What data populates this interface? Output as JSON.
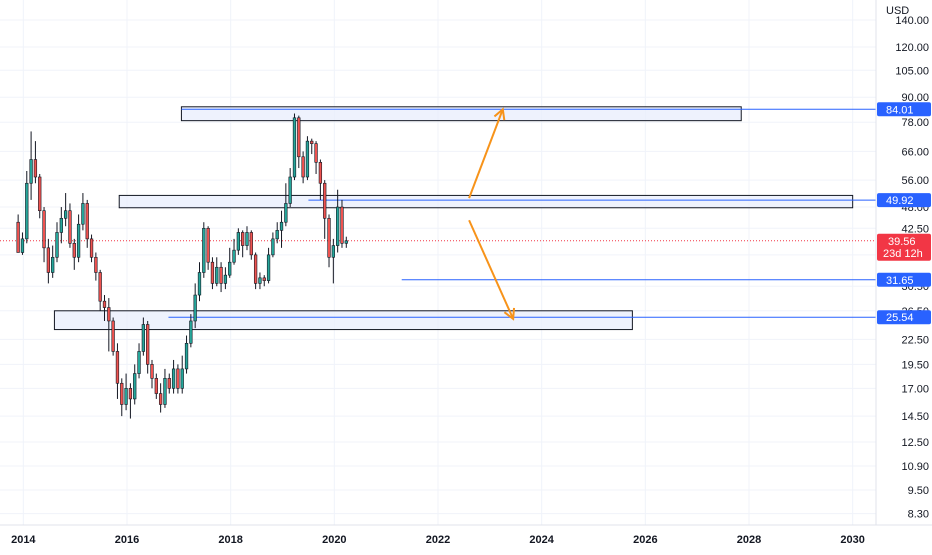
{
  "chart_data": {
    "type": "candlestick",
    "currency": "USD",
    "y_scale": "log",
    "ylim": [
      8.0,
      150.0
    ],
    "xlim": [
      2013.55,
      2030.45
    ],
    "price_ticks": [
      "140.00",
      "120.00",
      "105.00",
      "90.00",
      "78.00",
      "66.00",
      "56.00",
      "48.00",
      "42.50",
      "36.50",
      "30.50",
      "26.50",
      "22.50",
      "19.50",
      "17.00",
      "14.50",
      "12.50",
      "10.90",
      "9.50",
      "8.30"
    ],
    "year_ticks": [
      "2014",
      "2016",
      "2018",
      "2020",
      "2022",
      "2024",
      "2026",
      "2028",
      "2030"
    ],
    "candle_start": 2013.9,
    "candle_step": 0.0833,
    "candles": [
      [
        44.0,
        37.0,
        46.0,
        37.0
      ],
      [
        37.0,
        40.0,
        41.5,
        36.5
      ],
      [
        40.0,
        55.0,
        59.0,
        39.0
      ],
      [
        55.0,
        63.0,
        74.0,
        50.0
      ],
      [
        63.0,
        57.0,
        70.0,
        55.0
      ],
      [
        57.0,
        47.0,
        58.0,
        45.0
      ],
      [
        47.0,
        38.0,
        48.0,
        35.0
      ],
      [
        38.0,
        33.0,
        40.0,
        31.0
      ],
      [
        33.0,
        36.0,
        38.5,
        32.0
      ],
      [
        36.0,
        41.5,
        44.0,
        35.0
      ],
      [
        41.5,
        45.0,
        48.0,
        39.0
      ],
      [
        45.0,
        47.0,
        52.0,
        43.0
      ],
      [
        47.0,
        39.0,
        49.0,
        38.0
      ],
      [
        39.0,
        36.0,
        40.0,
        33.5
      ],
      [
        36.0,
        43.5,
        46.0,
        35.0
      ],
      [
        43.5,
        49.0,
        52.0,
        42.0
      ],
      [
        49.0,
        40.0,
        50.0,
        38.0
      ],
      [
        40.0,
        36.0,
        41.0,
        35.0
      ],
      [
        36.0,
        33.0,
        37.0,
        31.5
      ],
      [
        33.0,
        28.0,
        33.5,
        26.5
      ],
      [
        28.0,
        27.0,
        29.0,
        25.0
      ],
      [
        27.0,
        25.0,
        28.5,
        21.0
      ],
      [
        25.0,
        21.0,
        25.5,
        20.5
      ],
      [
        21.0,
        17.5,
        22.0,
        16.0
      ],
      [
        17.5,
        15.5,
        18.0,
        14.5
      ],
      [
        15.5,
        17.0,
        18.5,
        15.0
      ],
      [
        17.0,
        16.0,
        17.5,
        14.3
      ],
      [
        16.0,
        18.5,
        19.5,
        15.5
      ],
      [
        18.5,
        21.0,
        22.0,
        18.0
      ],
      [
        21.0,
        24.5,
        25.5,
        20.5
      ],
      [
        24.5,
        19.5,
        25.0,
        18.5
      ],
      [
        19.5,
        18.0,
        20.0,
        17.0
      ],
      [
        18.0,
        16.5,
        18.5,
        16.0
      ],
      [
        16.5,
        15.5,
        17.5,
        14.8
      ],
      [
        15.5,
        18.0,
        19.0,
        15.2
      ],
      [
        18.0,
        17.0,
        18.5,
        16.5
      ],
      [
        17.0,
        19.0,
        20.0,
        16.5
      ],
      [
        19.0,
        17.0,
        19.5,
        16.5
      ],
      [
        17.0,
        19.0,
        20.5,
        16.5
      ],
      [
        19.0,
        22.0,
        23.0,
        18.5
      ],
      [
        22.0,
        25.0,
        26.0,
        21.5
      ],
      [
        25.0,
        29.0,
        31.0,
        24.0
      ],
      [
        29.0,
        33.0,
        35.0,
        28.0
      ],
      [
        33.0,
        42.5,
        44.0,
        32.0
      ],
      [
        42.5,
        35.0,
        43.0,
        33.5
      ],
      [
        35.0,
        31.0,
        36.0,
        30.0
      ],
      [
        31.0,
        34.0,
        36.0,
        30.5
      ],
      [
        34.0,
        31.0,
        35.0,
        29.5
      ],
      [
        31.0,
        32.5,
        34.0,
        30.0
      ],
      [
        32.5,
        35.0,
        38.0,
        32.0
      ],
      [
        35.0,
        37.5,
        40.0,
        34.5
      ],
      [
        37.5,
        41.5,
        42.5,
        36.5
      ],
      [
        41.5,
        38.5,
        42.0,
        36.0
      ],
      [
        38.5,
        41.5,
        43.0,
        37.5
      ],
      [
        41.5,
        36.5,
        42.0,
        35.5
      ],
      [
        36.5,
        31.0,
        37.0,
        30.0
      ],
      [
        31.0,
        32.0,
        33.0,
        30.0
      ],
      [
        32.0,
        31.5,
        32.5,
        30.5
      ],
      [
        31.5,
        36.5,
        38.0,
        31.0
      ],
      [
        36.5,
        40.0,
        41.5,
        36.0
      ],
      [
        40.0,
        42.0,
        44.0,
        39.0
      ],
      [
        42.0,
        44.0,
        47.0,
        38.0
      ],
      [
        44.0,
        49.0,
        55.0,
        43.0
      ],
      [
        49.0,
        57.0,
        60.0,
        48.0
      ],
      [
        57.0,
        80.0,
        82.0,
        56.0
      ],
      [
        80.0,
        64.0,
        81.0,
        60.0
      ],
      [
        64.0,
        57.0,
        66.0,
        55.0
      ],
      [
        57.0,
        70.0,
        72.0,
        56.0
      ],
      [
        70.0,
        69.0,
        71.0,
        65.0
      ],
      [
        69.0,
        62.0,
        70.0,
        58.0
      ],
      [
        62.0,
        55.0,
        63.0,
        50.0
      ],
      [
        55.0,
        45.0,
        56.0,
        40.0
      ],
      [
        45.0,
        36.0,
        46.0,
        34.0
      ],
      [
        36.0,
        38.5,
        40.0,
        31.0
      ],
      [
        38.5,
        48.0,
        53.0,
        37.0
      ],
      [
        48.0,
        39.0,
        50.0,
        38.0
      ],
      [
        39.0,
        39.56,
        40.5,
        38.0
      ]
    ],
    "zones": [
      {
        "x0": 2017.05,
        "x1": 2027.85,
        "y0": 78.7,
        "y1": 85.2
      },
      {
        "x0": 2015.85,
        "x1": 2030.0,
        "y0": 47.8,
        "y1": 51.3
      },
      {
        "x0": 2014.6,
        "x1": 2025.75,
        "y0": 23.8,
        "y1": 26.5
      }
    ],
    "levels": [
      {
        "value": 84.01,
        "label": "84.01",
        "x0": 2017.05
      },
      {
        "value": 49.92,
        "label": "49.92",
        "x0": 2019.5
      },
      {
        "value": 31.65,
        "label": "31.65",
        "x0": 2021.3
      },
      {
        "value": 25.54,
        "label": "25.54",
        "x0": 2016.8
      }
    ],
    "arrows": [
      {
        "from": [
          2022.6,
          50.5
        ],
        "to": [
          2023.25,
          84.0
        ]
      },
      {
        "from": [
          2022.6,
          44.5
        ],
        "to": [
          2023.45,
          25.3
        ]
      }
    ],
    "current_price": {
      "value": 39.56,
      "label": "39.56",
      "countdown": "23d 12h"
    }
  },
  "colors": {
    "up": "#26a69a",
    "down": "#ef5350",
    "zone_fill": "#e8eefc",
    "zone_stroke": "#131722",
    "level": "#2962ff",
    "arrow": "#f7931a",
    "current": "#f23645",
    "grid": "#f0f3fa",
    "text": "#131722"
  }
}
